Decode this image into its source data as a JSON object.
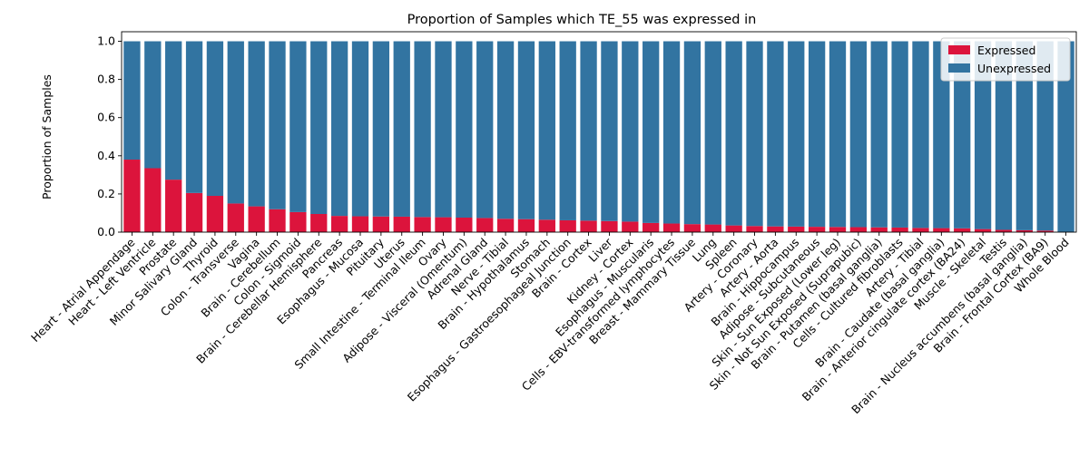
{
  "chart_data": {
    "type": "bar",
    "stacked": true,
    "title": "Proportion of Samples which TE_55 was expressed in",
    "xlabel": "",
    "ylabel": "Proportion of Samples",
    "ylim": [
      0,
      1.05
    ],
    "yticks": [
      "0.0",
      "0.2",
      "0.4",
      "0.6",
      "0.8",
      "1.0"
    ],
    "legend_position": "top-right",
    "categories": [
      "Heart - Atrial Appendage",
      "Heart - Left Ventricle",
      "Prostate",
      "Minor Salivary Gland",
      "Thyroid",
      "Colon - Transverse",
      "Vagina",
      "Brain - Cerebellum",
      "Colon - Sigmoid",
      "Brain - Cerebellar Hemisphere",
      "Pancreas",
      "Esophagus - Mucosa",
      "Pituitary",
      "Uterus",
      "Small Intestine - Terminal Ileum",
      "Ovary",
      "Adipose - Visceral (Omentum)",
      "Adrenal Gland",
      "Nerve - Tibial",
      "Brain - Hypothalamus",
      "Stomach",
      "Esophagus - Gastroesophageal Junction",
      "Brain - Cortex",
      "Liver",
      "Kidney - Cortex",
      "Esophagus - Muscularis",
      "Cells - EBV-transformed lymphocytes",
      "Breast - Mammary Tissue",
      "Lung",
      "Spleen",
      "Artery - Coronary",
      "Artery - Aorta",
      "Brain - Hippocampus",
      "Adipose - Subcutaneous",
      "Skin - Sun Exposed (Lower leg)",
      "Skin - Not Sun Exposed (Suprapubic)",
      "Brain - Putamen (basal ganglia)",
      "Cells - Cultured fibroblasts",
      "Artery - Tibial",
      "Brain - Caudate (basal ganglia)",
      "Brain - Anterior cingulate cortex (BA24)",
      "Muscle - Skeletal",
      "Testis",
      "Brain - Nucleus accumbens (basal ganglia)",
      "Brain - Frontal Cortex (BA9)",
      "Whole Blood"
    ],
    "series": [
      {
        "name": "Expressed",
        "color": "#dc143c",
        "values": [
          0.38,
          0.335,
          0.275,
          0.205,
          0.19,
          0.15,
          0.135,
          0.12,
          0.105,
          0.095,
          0.085,
          0.083,
          0.082,
          0.081,
          0.079,
          0.078,
          0.076,
          0.074,
          0.07,
          0.068,
          0.065,
          0.062,
          0.06,
          0.058,
          0.055,
          0.048,
          0.045,
          0.042,
          0.04,
          0.035,
          0.032,
          0.03,
          0.029,
          0.028,
          0.027,
          0.026,
          0.025,
          0.024,
          0.022,
          0.021,
          0.02,
          0.016,
          0.012,
          0.01,
          0.008,
          0.0
        ]
      },
      {
        "name": "Unexpressed",
        "color": "#3274a1",
        "values": [
          0.62,
          0.665,
          0.725,
          0.795,
          0.81,
          0.85,
          0.865,
          0.88,
          0.895,
          0.905,
          0.915,
          0.917,
          0.918,
          0.919,
          0.921,
          0.922,
          0.924,
          0.926,
          0.93,
          0.932,
          0.935,
          0.938,
          0.94,
          0.942,
          0.945,
          0.952,
          0.955,
          0.958,
          0.96,
          0.965,
          0.968,
          0.97,
          0.971,
          0.972,
          0.973,
          0.974,
          0.975,
          0.976,
          0.978,
          0.979,
          0.98,
          0.984,
          0.988,
          0.99,
          0.992,
          1.0
        ]
      }
    ]
  }
}
